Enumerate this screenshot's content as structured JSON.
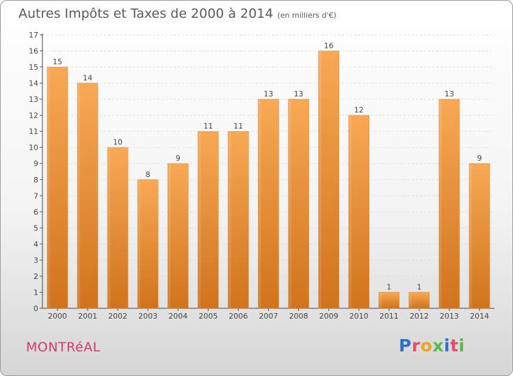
{
  "title": "Autres Impôts et Taxes de 2000 à 2014",
  "title_unit": "(en milliers d'€)",
  "location": "MONTRéAL",
  "logo": {
    "letters": [
      {
        "ch": "P",
        "color": "#2f6fc6"
      },
      {
        "ch": "r",
        "color": "#e84b6e"
      },
      {
        "ch": "o",
        "color": "#f0a520"
      },
      {
        "ch": "x",
        "color": "#54b948"
      },
      {
        "ch": "i",
        "color": "#2f6fc6"
      },
      {
        "ch": "t",
        "color": "#e84b6e"
      },
      {
        "ch": "i",
        "color": "#54b948"
      }
    ]
  },
  "colors": {
    "bar_top": "#f8a955",
    "bar_bottom": "#d0731d",
    "title": "#5a5a5a",
    "location": "#d63a6a"
  },
  "chart_data": {
    "type": "bar",
    "title": "Autres Impôts et Taxes de 2000 à 2014",
    "categories": [
      "2000",
      "2001",
      "2002",
      "2003",
      "2004",
      "2005",
      "2006",
      "2007",
      "2008",
      "2009",
      "2010",
      "2011",
      "2012",
      "2013",
      "2014"
    ],
    "values": [
      15,
      14,
      10,
      8,
      9,
      11,
      11,
      13,
      13,
      16,
      12,
      1,
      1,
      13,
      9
    ],
    "ylim": [
      0,
      17
    ],
    "yticks": [
      0,
      1,
      2,
      3,
      4,
      5,
      6,
      7,
      8,
      9,
      10,
      11,
      12,
      13,
      14,
      15,
      16,
      17
    ],
    "grid": true,
    "legend": "none"
  }
}
